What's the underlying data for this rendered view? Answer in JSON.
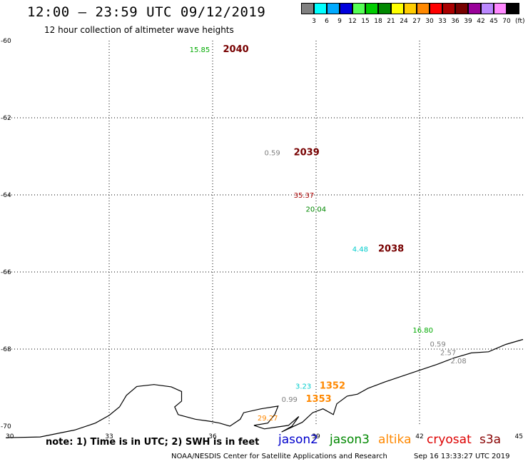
{
  "header": {
    "title": "12:00 – 23:59 UTC 09/12/2019",
    "subtitle": "12 hour collection of altimeter wave heights"
  },
  "colorbar": {
    "colors": [
      "#808080",
      "#00ffff",
      "#00aaff",
      "#0000dd",
      "#55ff55",
      "#00cc00",
      "#008800",
      "#ffff00",
      "#ffcc00",
      "#ff8800",
      "#ff0000",
      "#aa0000",
      "#770000",
      "#990099",
      "#bb88ff",
      "#ff88ff",
      "#000000"
    ],
    "labels": [
      "3",
      "6",
      "9",
      "12",
      "15",
      "18",
      "21",
      "24",
      "27",
      "30",
      "33",
      "36",
      "39",
      "42",
      "45",
      "70"
    ],
    "unit": "(ft)"
  },
  "map": {
    "x_ticks": [
      "30",
      "33",
      "36",
      "39",
      "42",
      "45"
    ],
    "y_ticks": [
      "-60",
      "-62",
      "-64",
      "-66",
      "-68",
      "-70"
    ],
    "x_range": [
      30,
      45
    ],
    "y_range": [
      -60,
      -70
    ]
  },
  "observations": [
    {
      "text": "15.85",
      "lon": 35.33,
      "lat": -60.22,
      "color": "#00aa00"
    },
    {
      "text": "2040",
      "lon": 36.3,
      "lat": -60.22,
      "color": "#770000",
      "bold": true
    },
    {
      "text": "0.59",
      "lon": 37.5,
      "lat": -62.9,
      "color": "#808080"
    },
    {
      "text": "2039",
      "lon": 38.35,
      "lat": -62.9,
      "color": "#770000",
      "bold": true
    },
    {
      "text": "35.37",
      "lon": 38.35,
      "lat": -64.0,
      "color": "#aa0000"
    },
    {
      "text": "20.04",
      "lon": 38.7,
      "lat": -64.36,
      "color": "#008800"
    },
    {
      "text": "4.48",
      "lon": 40.05,
      "lat": -65.4,
      "color": "#00cccc"
    },
    {
      "text": "2038",
      "lon": 40.8,
      "lat": -65.4,
      "color": "#770000",
      "bold": true
    },
    {
      "text": "16.80",
      "lon": 41.8,
      "lat": -67.5,
      "color": "#00aa00"
    },
    {
      "text": "0.59",
      "lon": 42.3,
      "lat": -67.86,
      "color": "#808080"
    },
    {
      "text": "2.57",
      "lon": 42.6,
      "lat": -68.08,
      "color": "#808080"
    },
    {
      "text": "2.08",
      "lon": 42.9,
      "lat": -68.3,
      "color": "#808080"
    },
    {
      "text": "3.23",
      "lon": 38.4,
      "lat": -68.95,
      "color": "#00cccc"
    },
    {
      "text": "1352",
      "lon": 39.1,
      "lat": -68.95,
      "color": "#ff8800",
      "bold": true
    },
    {
      "text": "0.99",
      "lon": 38.0,
      "lat": -69.3,
      "color": "#808080"
    },
    {
      "text": "1353",
      "lon": 38.7,
      "lat": -69.3,
      "color": "#ff8800",
      "bold": true
    },
    {
      "text": "29.27",
      "lon": 37.3,
      "lat": -69.78,
      "color": "#ff8800"
    }
  ],
  "coastline": [
    [
      30.0,
      -70.3
    ],
    [
      31.0,
      -70.28
    ],
    [
      32.0,
      -70.1
    ],
    [
      32.6,
      -69.92
    ],
    [
      33.0,
      -69.72
    ],
    [
      33.3,
      -69.5
    ],
    [
      33.5,
      -69.2
    ],
    [
      33.8,
      -68.97
    ],
    [
      34.3,
      -68.92
    ],
    [
      34.8,
      -68.98
    ],
    [
      35.1,
      -69.1
    ],
    [
      35.1,
      -69.35
    ],
    [
      34.9,
      -69.5
    ],
    [
      35.0,
      -69.7
    ],
    [
      35.5,
      -69.82
    ],
    [
      35.9,
      -69.87
    ],
    [
      36.2,
      -69.92
    ],
    [
      36.5,
      -70.0
    ],
    [
      36.8,
      -69.82
    ],
    [
      36.9,
      -69.65
    ],
    [
      37.4,
      -69.55
    ],
    [
      37.9,
      -69.48
    ],
    [
      37.8,
      -69.7
    ],
    [
      37.6,
      -69.92
    ],
    [
      37.2,
      -69.98
    ],
    [
      37.5,
      -70.07
    ],
    [
      38.2,
      -69.98
    ],
    [
      38.5,
      -69.75
    ],
    [
      38.3,
      -70.0
    ],
    [
      38.0,
      -70.15
    ],
    [
      38.6,
      -69.9
    ],
    [
      38.9,
      -69.65
    ],
    [
      39.2,
      -69.55
    ],
    [
      39.5,
      -69.7
    ],
    [
      39.6,
      -69.42
    ],
    [
      39.9,
      -69.22
    ],
    [
      40.2,
      -69.17
    ],
    [
      40.5,
      -69.02
    ],
    [
      41.0,
      -68.85
    ],
    [
      41.5,
      -68.7
    ],
    [
      42.0,
      -68.55
    ],
    [
      42.5,
      -68.4
    ],
    [
      43.0,
      -68.23
    ],
    [
      43.5,
      -68.1
    ],
    [
      44.0,
      -68.07
    ],
    [
      44.5,
      -67.88
    ],
    [
      45.0,
      -67.75
    ]
  ],
  "note": "note: 1) Time is in UTC; 2) SWH is in feet",
  "legend": [
    {
      "name": "jason2",
      "color": "#0000cc"
    },
    {
      "name": "jason3",
      "color": "#008800"
    },
    {
      "name": "altika",
      "color": "#ff8800"
    },
    {
      "name": "cryosat",
      "color": "#dd0000"
    },
    {
      "name": "s3a",
      "color": "#880000"
    }
  ],
  "footer": {
    "credit": "NOAA/NESDIS Center for Satellite Applications and Research",
    "timestamp": "Sep 16 13:33:27 UTC 2019"
  }
}
